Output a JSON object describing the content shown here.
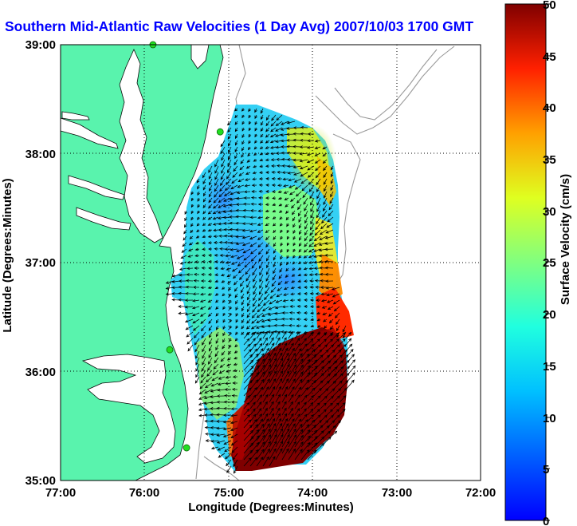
{
  "chart_data": {
    "type": "heatmap",
    "title": "Southern Mid-Atlantic Raw Velocities (1 Day Avg) 2007/10/03 1700 GMT",
    "xlabel": "Longitude (Degrees:Minutes)",
    "ylabel": "Latitude (Degrees:Minutes)",
    "colorbar_label": "Surface Velocity (cm/s)",
    "x_ticks": [
      "77:00",
      "76:00",
      "75:00",
      "74:00",
      "73:00",
      "72:00"
    ],
    "y_ticks": [
      "39:00",
      "38:00",
      "37:00",
      "36:00",
      "35:00"
    ],
    "colorbar_ticks": [
      "50",
      "45",
      "40",
      "35",
      "30",
      "25",
      "20",
      "15",
      "10",
      "5",
      "0"
    ],
    "xlim": [
      -77,
      -72
    ],
    "ylim": [
      35,
      39
    ],
    "clim": [
      0,
      50
    ],
    "grid": true,
    "colors": {
      "land": "#59f3ad",
      "coast_outline": "#0a0a0a",
      "bathymetry": "#9a9a9a",
      "station_marker": "#22dd22",
      "title": "#0000ff",
      "colormap": "jet"
    },
    "stations": [
      {
        "lon": -75.9,
        "lat": 39.0
      },
      {
        "lon": -75.1,
        "lat": 38.2
      },
      {
        "lon": -75.7,
        "lat": 36.2
      },
      {
        "lon": -75.5,
        "lat": 35.3
      }
    ],
    "speed_regions": [
      {
        "name": "offshore-gulf-stream",
        "lon": -74.25,
        "lat": 35.75,
        "speed_cm_s": 50
      },
      {
        "name": "shelf-central",
        "lon": -74.8,
        "lat": 36.9,
        "speed_cm_s": 10
      },
      {
        "name": "northern-outer-shelf",
        "lon": -74.0,
        "lat": 37.8,
        "speed_cm_s": 25
      },
      {
        "name": "cape-hatteras-edge",
        "lon": -74.0,
        "lat": 36.6,
        "speed_cm_s": 40
      }
    ]
  }
}
